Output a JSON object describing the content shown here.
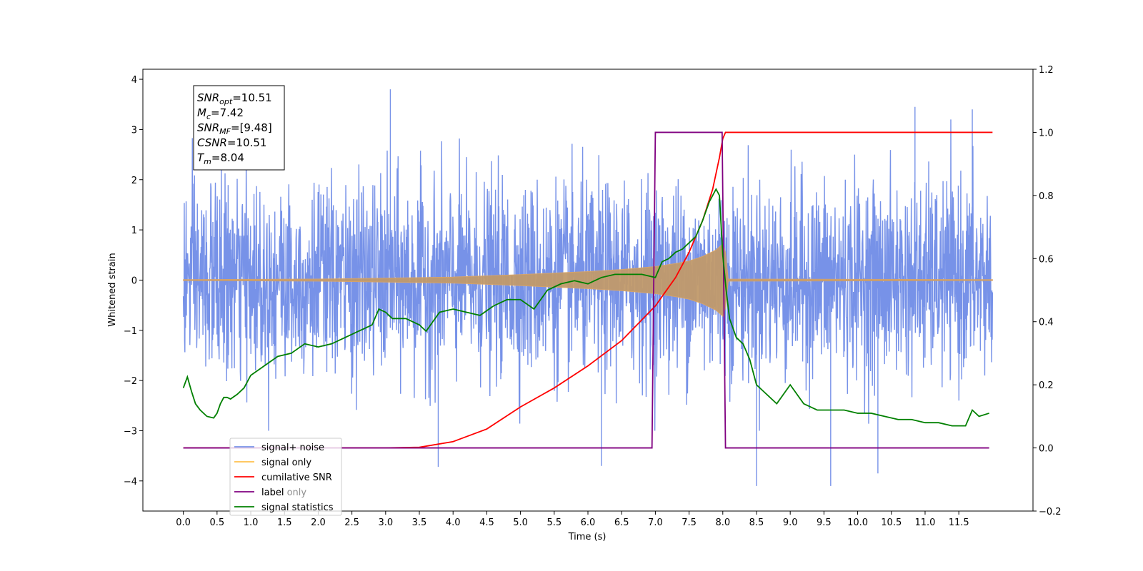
{
  "chart_data": {
    "type": "line",
    "xlabel": "Time (s)",
    "ylabel": "Whitened strain",
    "xlim": [
      -0.6,
      12.6
    ],
    "ylim": [
      -4.6,
      4.2
    ],
    "y2lim": [
      -0.2,
      1.2
    ],
    "xticks": [
      "0.0",
      "0.5",
      "1.0",
      "1.5",
      "2.0",
      "2.5",
      "3.0",
      "3.5",
      "4.0",
      "4.5",
      "5.0",
      "5.5",
      "6.0",
      "6.5",
      "7.0",
      "7.5",
      "8.0",
      "8.5",
      "9.0",
      "9.5",
      "10.0",
      "10.5",
      "11.0",
      "11.5"
    ],
    "yticks": [
      "4",
      "3",
      "2",
      "1",
      "0",
      "−1",
      "−2",
      "−3",
      "−4"
    ],
    "y2ticks": [
      "1.2",
      "1.0",
      "0.8",
      "0.6",
      "0.4",
      "0.2",
      "0.0",
      "−0.2"
    ],
    "legend_position": "lower-left",
    "stats_box": [
      {
        "base": "SNR",
        "sub": "opt",
        "value": "=10.51"
      },
      {
        "base": "M",
        "sub": "c",
        "value": "=7.42"
      },
      {
        "base": "SNR",
        "sub": "MF",
        "value": "=[9.48]"
      },
      {
        "base": "CSNR",
        "sub": "",
        "value": "=10.51"
      },
      {
        "base": "T",
        "sub": "m",
        "value": "=8.04"
      }
    ],
    "series": [
      {
        "name": "signal+ noise",
        "color": "#7792e8",
        "axis": "left",
        "x_range": [
          0.0,
          12.0
        ],
        "noise_std": 0.95,
        "extreme_values": [
          [
            3.07,
            3.8
          ],
          [
            10.85,
            3.45
          ],
          [
            11.7,
            3.4
          ],
          [
            3.78,
            -3.72
          ],
          [
            8.5,
            -4.1
          ],
          [
            9.6,
            -4.1
          ],
          [
            10.3,
            -3.85
          ],
          [
            6.2,
            -3.7
          ]
        ]
      },
      {
        "name": "signal only",
        "color": "#ffc04d",
        "axis": "left",
        "envelope": {
          "x": [
            0.0,
            2.0,
            4.0,
            5.0,
            6.0,
            6.5,
            7.0,
            7.3,
            7.5,
            7.7,
            7.9,
            8.0,
            8.04,
            8.08,
            12.0
          ],
          "amplitude": [
            0.01,
            0.02,
            0.06,
            0.11,
            0.17,
            0.21,
            0.27,
            0.33,
            0.38,
            0.47,
            0.6,
            0.72,
            0.55,
            0.02,
            0.01
          ]
        }
      },
      {
        "name": "cumilative SNR",
        "color": "#ff0000",
        "axis": "right",
        "x": [
          0.0,
          3.0,
          3.5,
          4.0,
          4.5,
          5.0,
          5.5,
          6.0,
          6.5,
          7.0,
          7.3,
          7.5,
          7.7,
          7.85,
          7.95,
          8.0,
          8.04,
          12.0
        ],
        "y": [
          0.0,
          0.0,
          0.002,
          0.02,
          0.06,
          0.13,
          0.19,
          0.26,
          0.34,
          0.45,
          0.54,
          0.62,
          0.72,
          0.82,
          0.92,
          0.98,
          1.0,
          1.0
        ]
      },
      {
        "name": "label",
        "color": "#800080",
        "axis": "right",
        "x": [
          0.0,
          6.95,
          7.0,
          7.99,
          8.04,
          11.95
        ],
        "y": [
          0.0,
          0.0,
          1.0,
          1.0,
          0.0,
          0.0
        ]
      },
      {
        "name": "label only",
        "color": "#800080",
        "axis": "right",
        "legend_occluded": true
      },
      {
        "name": "signal statistics",
        "color": "#008000",
        "axis": "right",
        "x": [
          0.0,
          0.06,
          0.12,
          0.18,
          0.25,
          0.35,
          0.45,
          0.5,
          0.55,
          0.6,
          0.65,
          0.7,
          0.8,
          0.9,
          1.0,
          1.2,
          1.4,
          1.6,
          1.8,
          2.0,
          2.2,
          2.4,
          2.6,
          2.8,
          2.9,
          3.0,
          3.1,
          3.3,
          3.5,
          3.6,
          3.8,
          4.0,
          4.2,
          4.4,
          4.6,
          4.8,
          5.0,
          5.2,
          5.4,
          5.6,
          5.8,
          6.0,
          6.2,
          6.4,
          6.6,
          6.8,
          7.0,
          7.1,
          7.2,
          7.3,
          7.4,
          7.5,
          7.6,
          7.7,
          7.8,
          7.9,
          7.95,
          8.0,
          8.05,
          8.1,
          8.2,
          8.3,
          8.4,
          8.5,
          8.6,
          8.8,
          9.0,
          9.2,
          9.4,
          9.6,
          9.8,
          10.0,
          10.2,
          10.4,
          10.6,
          10.8,
          11.0,
          11.2,
          11.4,
          11.6,
          11.7,
          11.8,
          11.95
        ],
        "y": [
          0.19,
          0.225,
          0.18,
          0.14,
          0.12,
          0.1,
          0.095,
          0.11,
          0.14,
          0.16,
          0.16,
          0.155,
          0.17,
          0.19,
          0.23,
          0.26,
          0.29,
          0.3,
          0.33,
          0.32,
          0.33,
          0.35,
          0.37,
          0.39,
          0.44,
          0.43,
          0.41,
          0.41,
          0.39,
          0.37,
          0.43,
          0.44,
          0.43,
          0.42,
          0.45,
          0.47,
          0.47,
          0.44,
          0.5,
          0.52,
          0.53,
          0.52,
          0.54,
          0.55,
          0.55,
          0.55,
          0.54,
          0.59,
          0.6,
          0.62,
          0.63,
          0.65,
          0.67,
          0.72,
          0.78,
          0.82,
          0.8,
          0.61,
          0.5,
          0.41,
          0.35,
          0.33,
          0.28,
          0.2,
          0.18,
          0.14,
          0.2,
          0.14,
          0.12,
          0.12,
          0.12,
          0.11,
          0.11,
          0.1,
          0.09,
          0.09,
          0.08,
          0.08,
          0.07,
          0.07,
          0.12,
          0.1,
          0.11
        ]
      }
    ]
  }
}
